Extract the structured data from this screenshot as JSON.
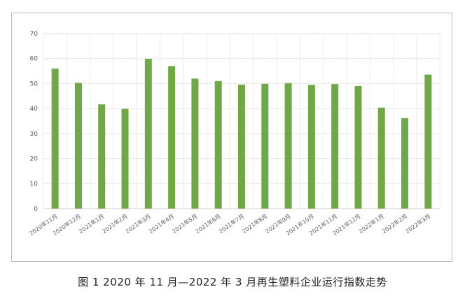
{
  "figure": {
    "caption": "图 1  2020 年 11 月—2022 年 3 月再生塑料企业运行指数走势"
  },
  "chart_data": {
    "type": "bar",
    "title": "",
    "xlabel": "",
    "ylabel": "",
    "ylim": [
      0,
      70
    ],
    "yticks": [
      0,
      10,
      20,
      30,
      40,
      50,
      60,
      70
    ],
    "grid": true,
    "legend": "none",
    "bar_color": "#70a848",
    "categories": [
      "2020年11月",
      "2020年12月",
      "2021年1月",
      "2021年2月",
      "2021年3月",
      "2021年4月",
      "2021年5月",
      "2021年6月",
      "2021年7月",
      "2021年8月",
      "2021年9月",
      "2021年10月",
      "2021年11月",
      "2021年12月",
      "2022年1月",
      "2022年2月",
      "2022年3月"
    ],
    "values": [
      56,
      50.3,
      41.7,
      39.9,
      59.9,
      57,
      52,
      51,
      49.6,
      49.9,
      50.2,
      49.5,
      49.8,
      49,
      40.4,
      36.2,
      53.6
    ]
  }
}
